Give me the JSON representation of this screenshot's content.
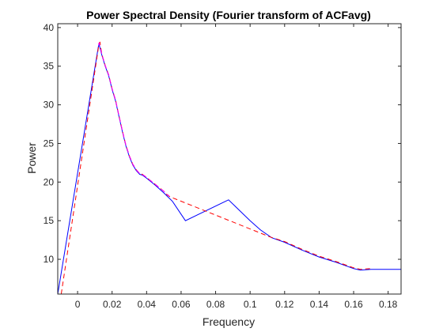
{
  "chart_data": {
    "type": "line",
    "title": "Power Spectral Density (Fourier transform of ACFavg)",
    "xlabel": "Frequency",
    "ylabel": "Power",
    "xlim": [
      -0.0115,
      0.1875
    ],
    "ylim": [
      5.5,
      40.5
    ],
    "xticks": [
      0,
      0.02,
      0.04,
      0.06,
      0.08,
      0.1,
      0.12,
      0.14,
      0.16,
      0.18
    ],
    "xtick_labels": [
      "0",
      "0.02",
      "0.04",
      "0.06",
      "0.08",
      "0.1",
      "0.12",
      "0.14",
      "0.16",
      "0.18"
    ],
    "yticks": [
      10,
      15,
      20,
      25,
      30,
      35,
      40
    ],
    "ytick_labels": [
      "10",
      "15",
      "20",
      "25",
      "30",
      "35",
      "40"
    ],
    "grid": false,
    "legend": "none",
    "series": [
      {
        "color": "#0000ff",
        "style": "solid",
        "x": [
          -0.0115,
          0.012,
          0.0125,
          0.014,
          0.016,
          0.018,
          0.02,
          0.022,
          0.024,
          0.026,
          0.028,
          0.03,
          0.032,
          0.034,
          0.036,
          0.0375,
          0.04,
          0.045,
          0.05,
          0.055,
          0.0625,
          0.0875,
          0.0935,
          0.1,
          0.106,
          0.1125,
          0.12,
          0.13,
          0.14,
          0.15,
          0.16,
          0.164,
          0.17,
          0.175,
          0.1875
        ],
        "y": [
          5.5,
          37.5,
          37.8,
          36.5,
          35.0,
          33.8,
          32.0,
          30.5,
          28.5,
          26.5,
          24.7,
          23.3,
          22.2,
          21.5,
          21.0,
          20.9,
          20.5,
          19.6,
          18.6,
          17.5,
          15.0,
          17.7,
          16.4,
          15.0,
          13.8,
          12.8,
          12.2,
          11.2,
          10.3,
          9.6,
          8.8,
          8.6,
          8.7,
          8.7,
          8.7
        ]
      },
      {
        "color": "#ff0000",
        "style": "dashed",
        "x": [
          -0.0095,
          0.0125,
          0.013,
          0.014,
          0.016,
          0.018,
          0.02,
          0.022,
          0.024,
          0.026,
          0.028,
          0.03,
          0.032,
          0.034,
          0.036,
          0.0375,
          0.04,
          0.045,
          0.05,
          0.0515,
          0.0535,
          0.1115,
          0.12,
          0.13,
          0.14,
          0.15,
          0.16,
          0.164,
          0.17
        ],
        "y": [
          5.5,
          38.0,
          38.1,
          36.6,
          35.1,
          33.9,
          32.1,
          30.6,
          28.6,
          26.6,
          24.8,
          23.4,
          22.3,
          21.6,
          21.1,
          21.0,
          20.6,
          19.7,
          18.8,
          18.4,
          18.1,
          12.9,
          12.3,
          11.3,
          10.4,
          9.7,
          8.9,
          8.7,
          8.8
        ]
      },
      {
        "color": "#ff00ff",
        "style": "dashed",
        "x": [
          0.012,
          0.0125,
          0.014,
          0.016,
          0.018,
          0.02,
          0.022,
          0.024,
          0.026,
          0.028,
          0.03,
          0.032,
          0.034,
          0.036,
          0.038,
          0.04,
          0.045,
          0.05,
          0.053
        ],
        "y": [
          37.8,
          38.0,
          36.6,
          35.1,
          33.9,
          32.1,
          30.6,
          28.6,
          26.6,
          24.8,
          23.4,
          22.3,
          21.6,
          21.1,
          20.9,
          20.6,
          19.7,
          18.8,
          18.2
        ]
      }
    ]
  }
}
